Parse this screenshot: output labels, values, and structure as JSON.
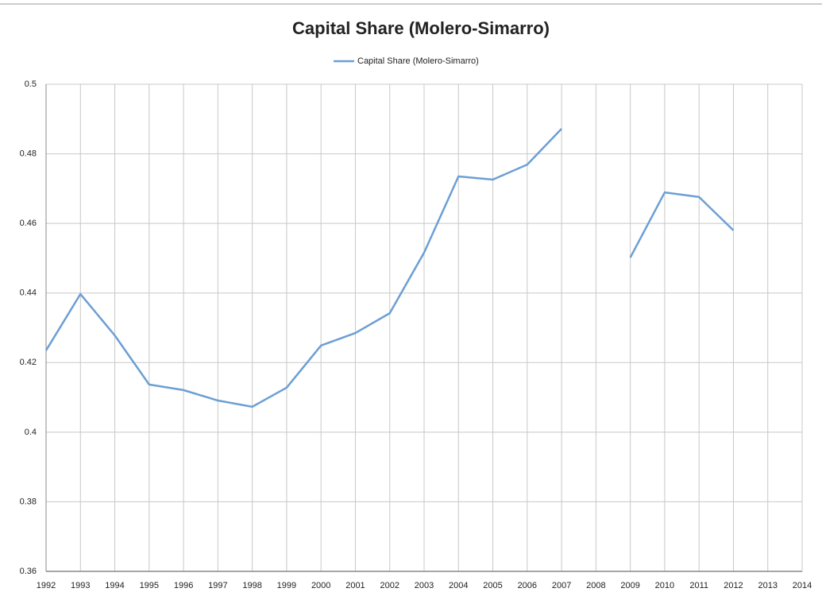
{
  "chart_data": {
    "type": "line",
    "title": "Capital Share (Molero-Simarro)",
    "categories": [
      "1992",
      "1993",
      "1994",
      "1995",
      "1996",
      "1997",
      "1998",
      "1999",
      "2000",
      "2001",
      "2002",
      "2003",
      "2004",
      "2005",
      "2006",
      "2007",
      "2008",
      "2009",
      "2010",
      "2011",
      "2012",
      "2013",
      "2014"
    ],
    "series": [
      {
        "name": "Capital Share (Molero-Simarro)",
        "color": "#6c9fd4",
        "values": [
          0.4235,
          0.4397,
          0.4278,
          0.4137,
          0.4121,
          0.4091,
          0.4073,
          0.4128,
          0.4249,
          0.4285,
          0.4342,
          0.4516,
          0.4735,
          0.4726,
          0.4769,
          0.4872,
          null,
          0.4502,
          0.4689,
          0.4676,
          0.458,
          null,
          null
        ]
      }
    ],
    "ylim": [
      0.36,
      0.5
    ],
    "yticks": [
      0.36,
      0.38,
      0.4,
      0.42,
      0.44,
      0.46,
      0.48,
      0.5
    ],
    "grid": true,
    "legend": "top"
  }
}
